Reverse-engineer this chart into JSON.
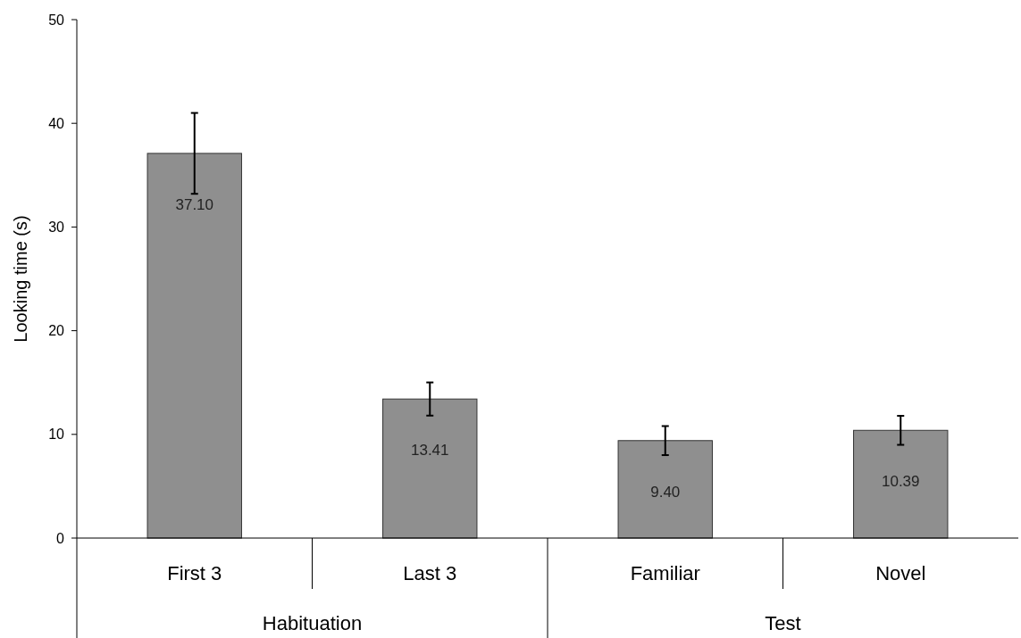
{
  "chart_data": {
    "type": "bar",
    "ylabel": "Looking time (s)",
    "categories": [
      "First 3",
      "Last 3",
      "Familiar",
      "Novel"
    ],
    "values": [
      37.1,
      13.41,
      9.4,
      10.39
    ],
    "value_labels": [
      "37.10",
      "13.41",
      "9.40",
      "10.39"
    ],
    "errors": [
      3.9,
      1.6,
      1.4,
      1.4
    ],
    "color": "#8f8f8f",
    "ylim": [
      0,
      50
    ],
    "yticks": [
      0,
      10,
      20,
      30,
      40,
      50
    ],
    "annotations": [
      "Habituation",
      "Test"
    ]
  }
}
